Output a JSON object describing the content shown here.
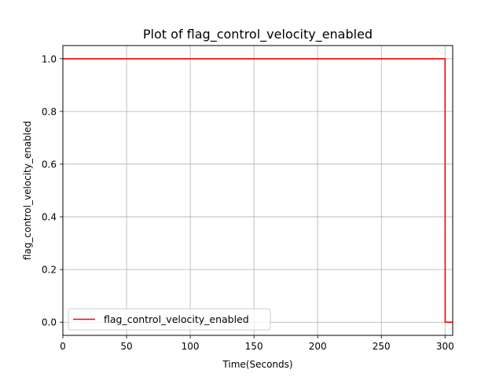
{
  "chart_data": {
    "type": "line",
    "title": "Plot of flag_control_velocity_enabled",
    "xlabel": "Time(Seconds)",
    "ylabel": "flag_control_velocity_enabled",
    "xlim": [
      0,
      306
    ],
    "ylim": [
      -0.05,
      1.05
    ],
    "x_ticks": [
      0,
      50,
      100,
      150,
      200,
      250,
      300
    ],
    "y_ticks": [
      0.0,
      0.2,
      0.4,
      0.6,
      0.8,
      1.0
    ],
    "x_tick_labels": [
      "0",
      "50",
      "100",
      "150",
      "200",
      "250",
      "300"
    ],
    "y_tick_labels": [
      "0.0",
      "0.2",
      "0.4",
      "0.6",
      "0.8",
      "1.0"
    ],
    "grid": true,
    "legend_position": "lower-left",
    "series": [
      {
        "name": "flag_control_velocity_enabled",
        "color": "#ff0000",
        "step": true,
        "x": [
          0,
          300,
          300.1,
          306
        ],
        "y": [
          1,
          1,
          0,
          0
        ]
      }
    ]
  }
}
